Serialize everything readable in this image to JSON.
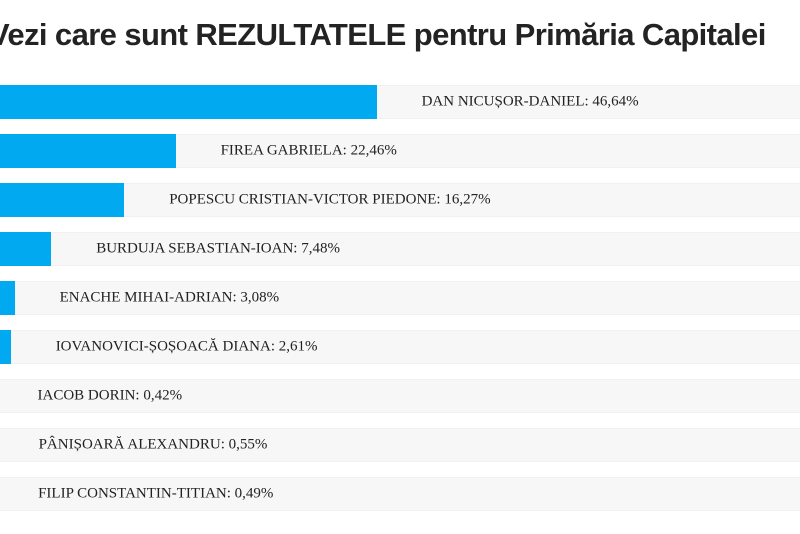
{
  "chart_data": {
    "type": "bar",
    "orientation": "horizontal",
    "title": "Vezi care sunt REZULTATELE pentru Primăria Capitalei",
    "bar_color": "#00a9f0",
    "track_color": "#f7f7f7",
    "xlim": [
      0,
      100
    ],
    "grid": false,
    "legend": false,
    "value_format": "comma-decimal-percent",
    "categories": [
      "DAN NICUȘOR-DANIEL",
      "FIREA GABRIELA",
      "POPESCU CRISTIAN-VICTOR PIEDONE",
      "BURDUJA SEBASTIAN-IOAN",
      "ENACHE MIHAI-ADRIAN",
      "IOVANOVICI-ȘOȘOACĂ DIANA",
      "IACOB DORIN",
      "PÂNIȘOARĂ ALEXANDRU",
      "FILIP CONSTANTIN-TITIAN"
    ],
    "values": [
      46.64,
      22.46,
      16.27,
      7.48,
      3.08,
      2.61,
      0.42,
      0.55,
      0.49
    ],
    "value_labels": [
      "46,64%",
      "22,46%",
      "16,27%",
      "7,48%",
      "3,08%",
      "2,61%",
      "0,42%",
      "0,55%",
      "0,49%"
    ],
    "row_labels": [
      "DAN NICUȘOR-DANIEL: 46,64%",
      "FIREA GABRIELA: 22,46%",
      "POPESCU CRISTIAN-VICTOR PIEDONE: 16,27%",
      "BURDUJA SEBASTIAN-IOAN: 7,48%",
      "ENACHE MIHAI-ADRIAN: 3,08%",
      "IOVANOVICI-ȘOȘOACĂ DIANA: 2,61%",
      "IACOB DORIN: 0,42%",
      "PÂNIȘOARĂ ALEXANDRU: 0,55%",
      "FILIP CONSTANTIN-TITIAN: 0,49%"
    ]
  }
}
